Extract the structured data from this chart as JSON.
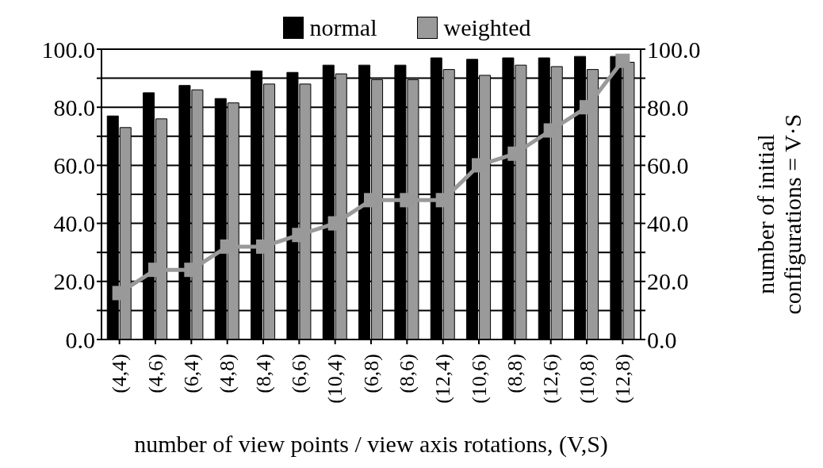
{
  "chart_data": {
    "type": "bar",
    "categories": [
      "(4,4)",
      "(4,6)",
      "(6,4)",
      "(4,8)",
      "(8,4)",
      "(6,6)",
      "(10,4)",
      "(6,8)",
      "(8,6)",
      "(12,4)",
      "(10,6)",
      "(8,8)",
      "(12,6)",
      "(10,8)",
      "(12,8)"
    ],
    "series": [
      {
        "name": "normal",
        "color": "#000000",
        "values": [
          77,
          85,
          87.5,
          83,
          92.5,
          92,
          94.5,
          94.5,
          94.5,
          97,
          96.5,
          97,
          97,
          97.5,
          97.5
        ]
      },
      {
        "name": "weighted",
        "color": "#9a9a9a",
        "values": [
          73,
          76,
          86,
          81.5,
          88,
          88,
          91.5,
          89.5,
          89.5,
          93,
          91,
          94.5,
          94,
          93,
          95.5
        ]
      },
      {
        "type": "line",
        "axis": "y2",
        "color": "#999999",
        "marker": "square",
        "values": [
          16,
          24,
          24,
          32,
          32,
          36,
          40,
          48,
          48,
          48,
          60,
          64,
          72,
          80,
          96
        ]
      }
    ],
    "xlabel": "number of view points / view axis rotations, (V,S)",
    "y2label": "number of initial\nconfigurations = V·S",
    "ylim": [
      0,
      100
    ],
    "yticks": [
      {
        "value": 0,
        "label": "0.0"
      },
      {
        "value": 10,
        "label": null
      },
      {
        "value": 20,
        "label": "20.0"
      },
      {
        "value": 30,
        "label": null
      },
      {
        "value": 40,
        "label": "40.0"
      },
      {
        "value": 50,
        "label": null
      },
      {
        "value": 60,
        "label": "60.0"
      },
      {
        "value": 70,
        "label": null
      },
      {
        "value": 80,
        "label": "80.0"
      },
      {
        "value": 90,
        "label": null
      },
      {
        "value": 100,
        "label": "100.0"
      }
    ],
    "y2lim": [
      0,
      100
    ],
    "y2ticks": [
      {
        "value": 0,
        "label": "0.0"
      },
      {
        "value": 10,
        "label": null
      },
      {
        "value": 20,
        "label": "20.0"
      },
      {
        "value": 30,
        "label": null
      },
      {
        "value": 40,
        "label": "40.0"
      },
      {
        "value": 50,
        "label": null
      },
      {
        "value": 60,
        "label": "60.0"
      },
      {
        "value": 70,
        "label": null
      },
      {
        "value": 80,
        "label": "80.0"
      },
      {
        "value": 90,
        "label": null
      },
      {
        "value": 100,
        "label": "100.0"
      }
    ],
    "grid": "y",
    "legend": "top"
  }
}
